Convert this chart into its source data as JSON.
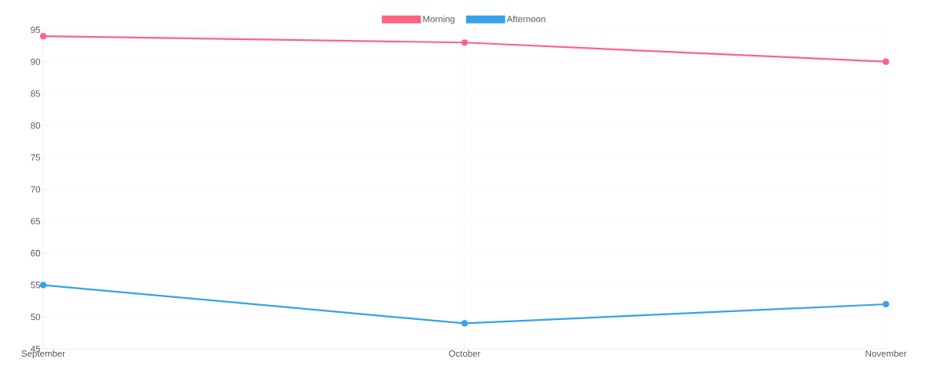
{
  "chart_data": {
    "type": "line",
    "categories": [
      "September",
      "October",
      "November"
    ],
    "series": [
      {
        "name": "Morning",
        "color": "#ff6384",
        "values": [
          94,
          93,
          90
        ]
      },
      {
        "name": "Afternoon",
        "color": "#36a2eb",
        "values": [
          55,
          49,
          52
        ]
      }
    ],
    "ylim": [
      45,
      95
    ],
    "yticks": [
      45,
      50,
      55,
      60,
      65,
      70,
      75,
      80,
      85,
      90,
      95
    ],
    "grid": true,
    "legend": "top",
    "marker": "circle",
    "line_style": "solid"
  }
}
